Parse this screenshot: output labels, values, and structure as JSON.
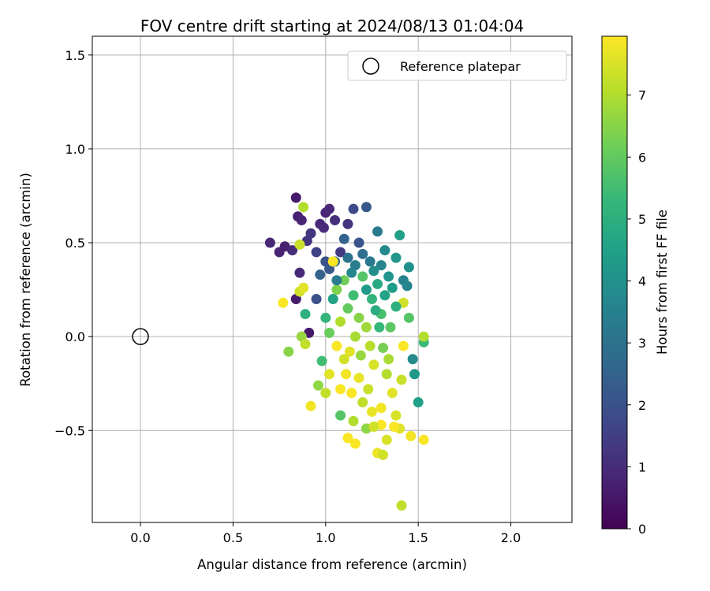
{
  "chart_data": {
    "type": "scatter",
    "title": "FOV centre drift starting at 2024/08/13 01:04:04",
    "xlabel": "Angular distance from reference (arcmin)",
    "ylabel": "Rotation from reference (arcmin)",
    "xlim": [
      -0.26,
      2.33
    ],
    "ylim": [
      -0.99,
      1.6
    ],
    "xticks": [
      0.0,
      0.5,
      1.0,
      1.5,
      2.0
    ],
    "xtick_labels": [
      "0.0",
      "0.5",
      "1.0",
      "1.5",
      "2.0"
    ],
    "yticks": [
      -0.5,
      0.0,
      0.5,
      1.0,
      1.5
    ],
    "ytick_labels": [
      "−0.5",
      "0.0",
      "0.5",
      "1.0",
      "1.5"
    ],
    "grid": true,
    "legend": {
      "placement": "top-right",
      "entries": [
        "Reference platepar"
      ]
    },
    "reference_point": {
      "x": 0.0,
      "y": 0.0
    },
    "colorbar": {
      "label": "Hours from first FF file",
      "range": [
        0,
        7.95
      ],
      "ticks": [
        0,
        1,
        2,
        3,
        4,
        5,
        6,
        7
      ],
      "tick_labels": [
        "0",
        "1",
        "2",
        "3",
        "4",
        "5",
        "6",
        "7"
      ],
      "colormap": "viridis"
    },
    "series": [
      {
        "points": [
          [
            0.7,
            0.5,
            0.9
          ],
          [
            0.75,
            0.45,
            0.8
          ],
          [
            0.78,
            0.48,
            0.7
          ],
          [
            0.82,
            0.46,
            1.0
          ],
          [
            0.84,
            0.74,
            0.6
          ],
          [
            0.85,
            0.64,
            0.7
          ],
          [
            0.87,
            0.62,
            0.8
          ],
          [
            0.86,
            0.34,
            0.9
          ],
          [
            0.84,
            0.2,
            0.6
          ],
          [
            0.9,
            0.51,
            1.2
          ],
          [
            0.92,
            0.55,
            1.3
          ],
          [
            0.95,
            0.45,
            1.6
          ],
          [
            0.97,
            0.6,
            0.9
          ],
          [
            0.99,
            0.58,
            1.0
          ],
          [
            1.0,
            0.66,
            0.8
          ],
          [
            1.02,
            0.68,
            0.9
          ],
          [
            1.05,
            0.62,
            1.1
          ],
          [
            1.08,
            0.45,
            1.4
          ],
          [
            1.12,
            0.6,
            1.2
          ],
          [
            1.15,
            0.68,
            1.8
          ],
          [
            1.22,
            0.69,
            2.2
          ],
          [
            1.0,
            0.4,
            2.0
          ],
          [
            0.97,
            0.33,
            2.5
          ],
          [
            1.02,
            0.36,
            2.2
          ],
          [
            1.05,
            0.4,
            2.8
          ],
          [
            0.91,
            0.02,
            0.5
          ],
          [
            0.95,
            0.2,
            2.0
          ],
          [
            1.1,
            0.52,
            2.5
          ],
          [
            1.18,
            0.5,
            2.1
          ],
          [
            1.28,
            0.56,
            3.3
          ],
          [
            1.4,
            0.54,
            4.5
          ],
          [
            1.32,
            0.46,
            3.8
          ],
          [
            1.38,
            0.42,
            4.2
          ],
          [
            1.45,
            0.37,
            4.0
          ],
          [
            1.42,
            0.3,
            3.5
          ],
          [
            1.44,
            0.27,
            3.6
          ],
          [
            1.48,
            -0.2,
            4.2
          ],
          [
            1.47,
            -0.12,
            3.8
          ],
          [
            1.5,
            -0.35,
            4.5
          ],
          [
            1.53,
            -0.03,
            5.4
          ],
          [
            0.86,
            0.49,
            7.3
          ],
          [
            0.88,
            0.69,
            7.0
          ],
          [
            0.86,
            0.24,
            7.4
          ],
          [
            0.89,
            0.12,
            5.0
          ],
          [
            0.8,
            -0.08,
            6.5
          ],
          [
            0.87,
            0.0,
            6.7
          ],
          [
            0.89,
            -0.04,
            7.2
          ],
          [
            0.92,
            -0.37,
            7.8
          ],
          [
            0.77,
            0.18,
            7.9
          ],
          [
            0.88,
            0.26,
            7.6
          ],
          [
            1.04,
            0.4,
            7.9
          ],
          [
            0.96,
            -0.26,
            6.6
          ],
          [
            0.98,
            -0.13,
            5.5
          ],
          [
            1.08,
            -0.42,
            5.8
          ],
          [
            1.12,
            -0.54,
            7.9
          ],
          [
            1.16,
            -0.57,
            7.9
          ],
          [
            1.22,
            -0.49,
            6.6
          ],
          [
            1.28,
            -0.62,
            7.7
          ],
          [
            1.31,
            -0.63,
            7.4
          ],
          [
            1.33,
            -0.55,
            7.5
          ],
          [
            1.3,
            -0.47,
            7.9
          ],
          [
            1.41,
            -0.9,
            7.2
          ],
          [
            1.46,
            -0.53,
            7.8
          ],
          [
            1.53,
            -0.55,
            7.9
          ],
          [
            1.4,
            -0.49,
            7.6
          ],
          [
            1.41,
            -0.23,
            7.3
          ],
          [
            1.53,
            0.0,
            7.0
          ],
          [
            1.42,
            0.18,
            7.4
          ],
          [
            1.06,
            0.25,
            6.4
          ],
          [
            1.08,
            0.08,
            7.0
          ],
          [
            1.1,
            0.3,
            6.2
          ],
          [
            1.12,
            0.15,
            6.0
          ],
          [
            1.15,
            0.22,
            5.5
          ],
          [
            1.18,
            0.1,
            6.5
          ],
          [
            1.2,
            0.32,
            5.8
          ],
          [
            1.22,
            0.05,
            6.8
          ],
          [
            1.25,
            0.2,
            5.2
          ],
          [
            1.28,
            0.28,
            4.8
          ],
          [
            1.3,
            0.12,
            5.6
          ],
          [
            1.32,
            0.22,
            4.6
          ],
          [
            1.35,
            0.05,
            5.9
          ],
          [
            1.38,
            0.16,
            5.0
          ],
          [
            1.24,
            -0.05,
            7.1
          ],
          [
            1.26,
            -0.15,
            7.5
          ],
          [
            1.18,
            -0.22,
            7.7
          ],
          [
            1.14,
            -0.3,
            7.9
          ],
          [
            1.2,
            -0.35,
            7.2
          ],
          [
            1.3,
            -0.38,
            7.8
          ],
          [
            1.36,
            -0.3,
            7.6
          ],
          [
            1.33,
            -0.2,
            7.0
          ],
          [
            1.1,
            -0.12,
            7.4
          ],
          [
            1.06,
            -0.05,
            7.9
          ],
          [
            1.02,
            -0.2,
            7.6
          ],
          [
            1.0,
            -0.3,
            7.2
          ],
          [
            1.15,
            -0.45,
            7.0
          ],
          [
            1.25,
            -0.4,
            7.7
          ],
          [
            1.38,
            -0.42,
            7.5
          ],
          [
            1.42,
            -0.05,
            7.9
          ],
          [
            1.45,
            0.1,
            5.8
          ],
          [
            1.12,
            0.42,
            3.0
          ],
          [
            1.16,
            0.38,
            3.4
          ],
          [
            1.2,
            0.44,
            2.9
          ],
          [
            1.24,
            0.4,
            3.2
          ],
          [
            1.26,
            0.35,
            3.9
          ],
          [
            1.3,
            0.38,
            3.6
          ],
          [
            1.34,
            0.32,
            4.1
          ],
          [
            1.36,
            0.26,
            4.4
          ],
          [
            1.14,
            0.34,
            3.7
          ],
          [
            1.06,
            0.3,
            3.3
          ],
          [
            1.04,
            0.2,
            4.6
          ],
          [
            1.0,
            0.1,
            5.2
          ],
          [
            1.02,
            0.02,
            6.1
          ],
          [
            1.22,
            0.25,
            4.3
          ],
          [
            1.27,
            0.14,
            4.9
          ],
          [
            1.29,
            0.05,
            5.3
          ],
          [
            1.31,
            -0.06,
            6.3
          ],
          [
            1.34,
            -0.12,
            6.9
          ],
          [
            1.23,
            -0.28,
            7.3
          ],
          [
            1.19,
            -0.1,
            6.7
          ],
          [
            1.16,
            0.0,
            6.9
          ],
          [
            1.13,
            -0.08,
            7.6
          ],
          [
            1.11,
            -0.2,
            7.8
          ],
          [
            1.08,
            -0.28,
            7.9
          ],
          [
            1.26,
            -0.48,
            7.4
          ],
          [
            1.37,
            -0.48,
            7.9
          ]
        ]
      }
    ]
  }
}
